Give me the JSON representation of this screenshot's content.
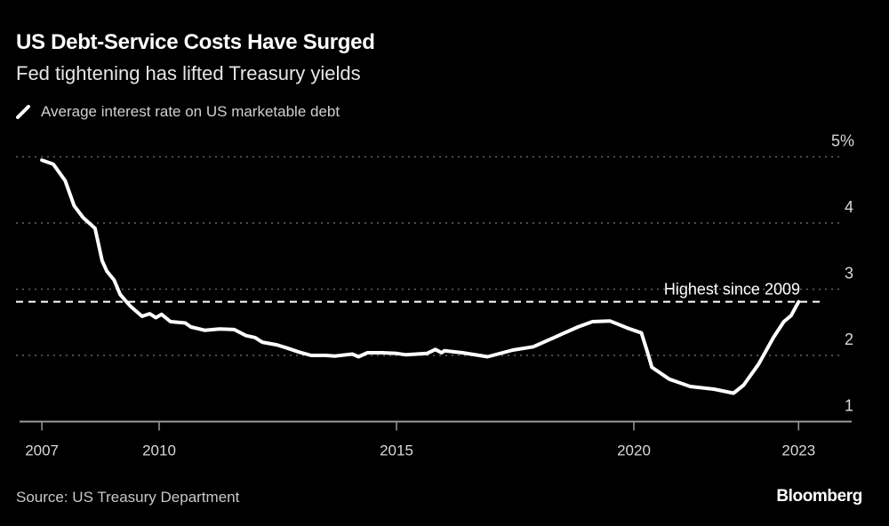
{
  "chart_data": {
    "type": "line",
    "title": "US Debt-Service Costs Have Surged",
    "subtitle": "Fed tightening has lifted Treasury yields",
    "xlabel": "",
    "ylabel": "",
    "x_tick_labels": [
      {
        "x": 2007.53,
        "label": "2007"
      },
      {
        "x": 2010,
        "label": "2010"
      },
      {
        "x": 2015,
        "label": "2015"
      },
      {
        "x": 2020,
        "label": "2020"
      },
      {
        "x": 2023.47,
        "label": "2023"
      }
    ],
    "y_ticks": [
      {
        "y": 5,
        "label": "5%"
      },
      {
        "y": 4,
        "label": "4"
      },
      {
        "y": 3,
        "label": "3"
      },
      {
        "y": 2,
        "label": "2"
      },
      {
        "y": 1,
        "label": "1"
      }
    ],
    "ylim": [
      1,
      5
    ],
    "grid": true,
    "legend_position": "top-left",
    "series": [
      {
        "name": "Average interest rate on US marketable debt",
        "color": "#ffffff",
        "x": [
          2007.53,
          2007.77,
          2008.02,
          2008.21,
          2008.4,
          2008.65,
          2008.8,
          2008.9,
          2009.05,
          2009.18,
          2009.4,
          2009.64,
          2009.8,
          2009.93,
          2010.05,
          2010.24,
          2010.55,
          2010.67,
          2010.96,
          2011.27,
          2011.58,
          2011.83,
          2012.02,
          2012.17,
          2012.48,
          2012.7,
          2012.95,
          2013.2,
          2013.51,
          2013.7,
          2014.07,
          2014.2,
          2014.39,
          2014.7,
          2015.01,
          2015.2,
          2015.64,
          2015.82,
          2015.95,
          2016.01,
          2016.39,
          2016.92,
          2017.45,
          2017.88,
          2018.32,
          2018.82,
          2019.13,
          2019.5,
          2019.88,
          2020.16,
          2020.29,
          2020.38,
          2020.75,
          2021.19,
          2021.69,
          2022.1,
          2022.31,
          2022.63,
          2022.94,
          2023.16,
          2023.31,
          2023.47
        ],
        "y": [
          4.95,
          4.89,
          4.64,
          4.26,
          4.08,
          3.92,
          3.43,
          3.27,
          3.14,
          2.92,
          2.74,
          2.59,
          2.63,
          2.57,
          2.62,
          2.51,
          2.49,
          2.43,
          2.38,
          2.4,
          2.39,
          2.3,
          2.27,
          2.2,
          2.16,
          2.11,
          2.05,
          2.0,
          2.0,
          1.99,
          2.02,
          1.98,
          2.04,
          2.04,
          2.03,
          2.01,
          2.03,
          2.09,
          2.04,
          2.07,
          2.04,
          1.98,
          2.08,
          2.13,
          2.27,
          2.43,
          2.51,
          2.52,
          2.41,
          2.34,
          2.04,
          1.82,
          1.64,
          1.53,
          1.49,
          1.43,
          1.55,
          1.87,
          2.27,
          2.51,
          2.6,
          2.81
        ]
      }
    ],
    "annotations": [
      {
        "type": "hline",
        "y": 2.81,
        "style": "dashed",
        "label": "Highest since 2009"
      }
    ]
  },
  "legend": {
    "label": "Average interest rate on US marketable debt"
  },
  "source": "Source: US Treasury Department",
  "logo": "Bloomberg",
  "colors": {
    "background": "#000000",
    "line": "#ffffff",
    "grid": "#666666",
    "axis": "#9a9a9a"
  }
}
